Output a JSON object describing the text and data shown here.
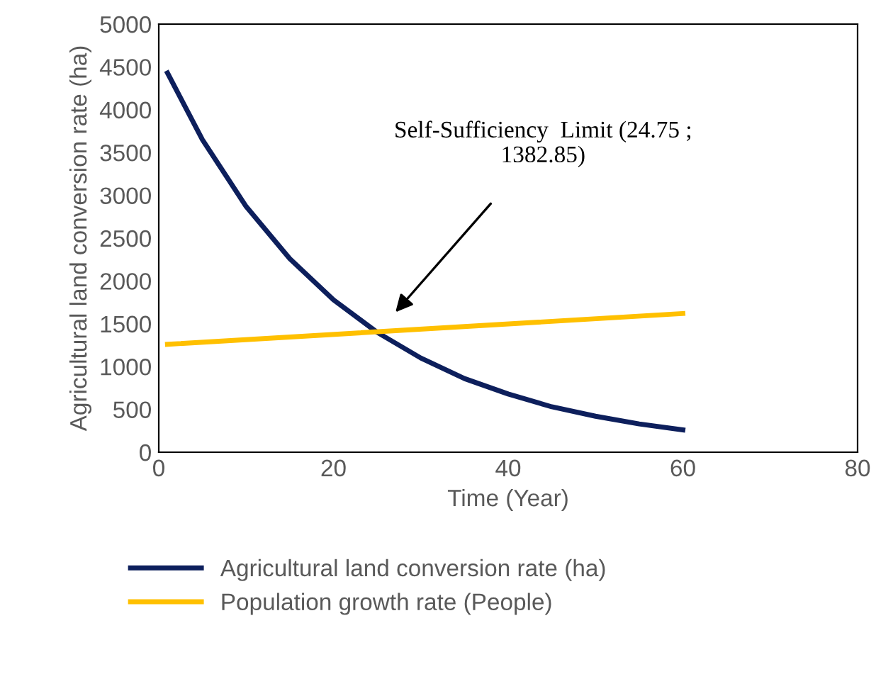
{
  "chart_data": {
    "type": "line",
    "xlabel": "Time (Year)",
    "ylabel": "Agricultural land conversion rate (ha)",
    "xlim": [
      0,
      80
    ],
    "xticks": [
      0,
      20,
      40,
      60,
      80
    ],
    "ylim": [
      0,
      5000
    ],
    "yticks": [
      0,
      500,
      1000,
      1500,
      2000,
      2500,
      3000,
      3500,
      4000,
      4500,
      5000
    ],
    "grid": false,
    "legend": "bottom",
    "marker": "none",
    "line_style": "solid",
    "series": [
      {
        "name": "Agricultural land conversion rate (ha)",
        "color": "#0d1f5c",
        "x": [
          1,
          5,
          10,
          15,
          20,
          25,
          30,
          35,
          40,
          45,
          50,
          55,
          60
        ],
        "values": [
          4430,
          3650,
          2870,
          2260,
          1780,
          1400,
          1100,
          860,
          680,
          530,
          420,
          330,
          260
        ]
      },
      {
        "name": "Population growth rate (People)",
        "color": "#ffc000",
        "x": [
          1,
          60
        ],
        "values": [
          1260,
          1620
        ]
      }
    ],
    "annotations": [
      "Self-Sufficiency  Limit (24.75 ;\n1382.85)"
    ]
  }
}
